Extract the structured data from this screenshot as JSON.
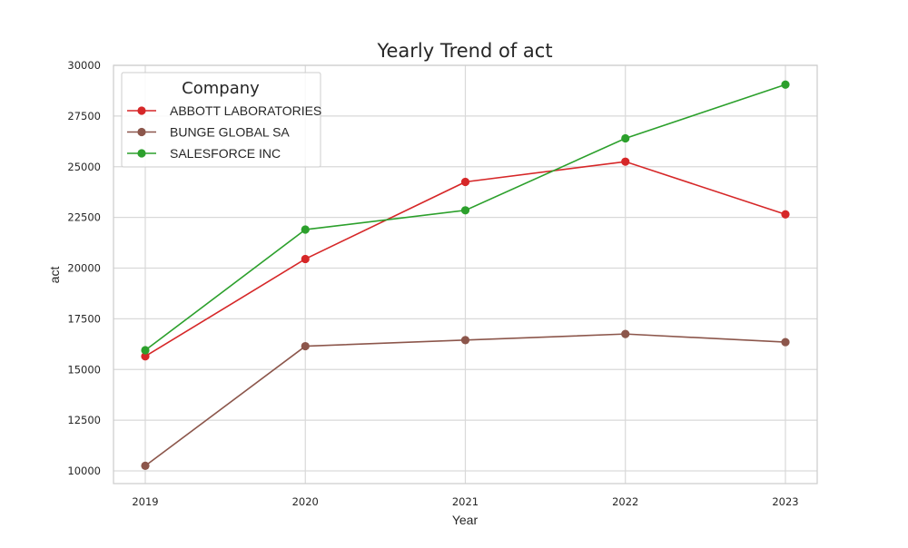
{
  "chart_data": {
    "type": "line",
    "title": "Yearly Trend of act",
    "xlabel": "Year",
    "ylabel": "act",
    "x": [
      "2019",
      "2020",
      "2021",
      "2022",
      "2023"
    ],
    "ylim": [
      9400,
      30000
    ],
    "yticks": [
      10000,
      12500,
      15000,
      17500,
      20000,
      22500,
      25000,
      27500,
      30000
    ],
    "grid": true,
    "legend_title": "Company",
    "legend_position": "upper-left",
    "series": [
      {
        "name": "ABBOTT LABORATORIES",
        "color": "#d62728",
        "values": [
          15650,
          20450,
          24250,
          25250,
          22650
        ]
      },
      {
        "name": "BUNGE GLOBAL SA",
        "color": "#8c564b",
        "values": [
          10250,
          16150,
          16450,
          16750,
          16350
        ]
      },
      {
        "name": "SALESFORCE INC",
        "color": "#2ca02c",
        "values": [
          15950,
          21900,
          22850,
          26400,
          29050
        ]
      }
    ]
  }
}
